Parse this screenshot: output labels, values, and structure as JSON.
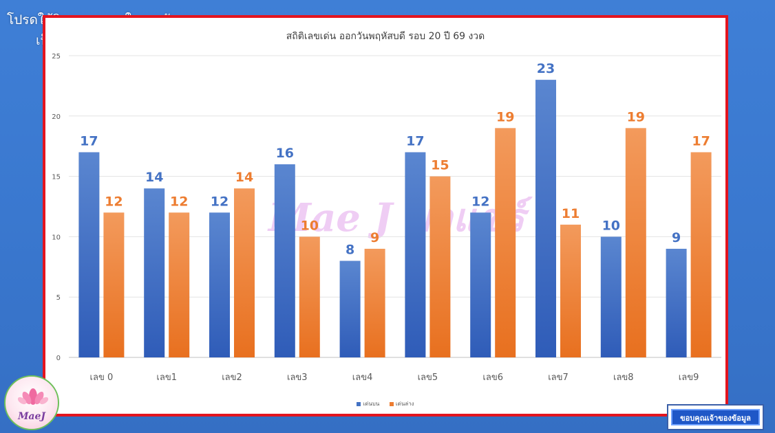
{
  "overlay": {
    "disclaimer_line1": "โปรดใช้วิจารณญาณในการรับชม",
    "disclaimer_line2": "เป็นความเชื่อส่วนบุคคล",
    "watermark": "Mae J มาแชร์",
    "logo_text": "MaeJ",
    "thanks_label": "ขอบคุณเจ้าของข้อมูล"
  },
  "colors": {
    "series_top": "#4472c4",
    "series_bottom": "#ed7d31",
    "frame_border": "#e3151f"
  },
  "chart_data": {
    "type": "bar",
    "title": "สถิติเลขเด่น ออกวันพฤหัสบดี รอบ  20 ปี  69 งวด",
    "categories": [
      "เลข 0",
      "เลข1",
      "เลข2",
      "เลข3",
      "เลข4",
      "เลข5",
      "เลข6",
      "เลข7",
      "เลข8",
      "เลข9"
    ],
    "series": [
      {
        "name": "เด่นบน",
        "values": [
          17,
          14,
          12,
          16,
          8,
          17,
          12,
          23,
          10,
          9
        ]
      },
      {
        "name": "เด่นล่าง",
        "values": [
          12,
          12,
          14,
          10,
          9,
          15,
          19,
          11,
          19,
          17
        ]
      }
    ],
    "ylim": [
      0,
      25
    ],
    "yticks": [
      0,
      5,
      10,
      15,
      20,
      25
    ],
    "grid": true,
    "legend_position": "bottom",
    "data_labels": true
  }
}
